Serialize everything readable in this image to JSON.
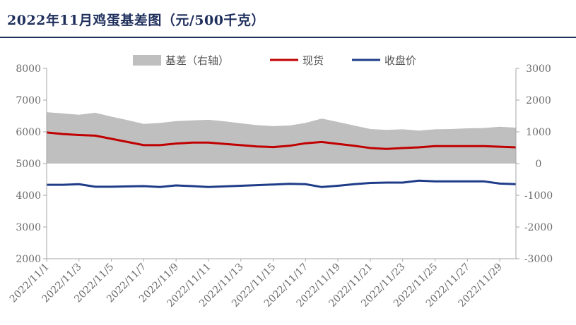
{
  "title": "2022年11月鸡蛋基差图（元/500千克）",
  "chart_data": {
    "type": "line",
    "x": [
      "2022/11/1",
      "2022/11/2",
      "2022/11/3",
      "2022/11/4",
      "2022/11/5",
      "2022/11/6",
      "2022/11/7",
      "2022/11/8",
      "2022/11/9",
      "2022/11/10",
      "2022/11/11",
      "2022/11/12",
      "2022/11/13",
      "2022/11/14",
      "2022/11/15",
      "2022/11/16",
      "2022/11/17",
      "2022/11/18",
      "2022/11/19",
      "2022/11/20",
      "2022/11/21",
      "2022/11/22",
      "2022/11/23",
      "2022/11/24",
      "2022/11/25",
      "2022/11/26",
      "2022/11/27",
      "2022/11/28",
      "2022/11/29",
      "2022/11/30"
    ],
    "x_tick_labels": [
      "2022/11/1",
      "2022/11/3",
      "2022/11/5",
      "2022/11/7",
      "2022/11/9",
      "2022/11/11",
      "2022/11/13",
      "2022/11/15",
      "2022/11/17",
      "2022/11/19",
      "2022/11/21",
      "2022/11/23",
      "2022/11/25",
      "2022/11/27",
      "2022/11/29"
    ],
    "y_left": {
      "ylim": [
        2000,
        8000
      ],
      "ticks": [
        2000,
        3000,
        4000,
        5000,
        6000,
        7000,
        8000
      ]
    },
    "y_right": {
      "ylim": [
        -3000,
        3000
      ],
      "ticks": [
        -3000,
        -2000,
        -1000,
        0,
        1000,
        2000,
        3000
      ]
    },
    "series": [
      {
        "name": "基差（右轴）",
        "type": "area",
        "axis": "right",
        "color": "#bfbfbf",
        "values": [
          1620,
          1580,
          1540,
          1600,
          1480,
          1370,
          1250,
          1280,
          1340,
          1360,
          1380,
          1330,
          1270,
          1210,
          1180,
          1200,
          1280,
          1420,
          1310,
          1200,
          1090,
          1060,
          1080,
          1040,
          1080,
          1090,
          1110,
          1120,
          1160,
          1130
        ]
      },
      {
        "name": "现货",
        "type": "line",
        "axis": "left",
        "color": "#c00000",
        "values": [
          5980,
          5930,
          5900,
          5880,
          5780,
          5680,
          5580,
          5580,
          5630,
          5660,
          5660,
          5620,
          5580,
          5540,
          5520,
          5560,
          5640,
          5680,
          5620,
          5560,
          5490,
          5460,
          5490,
          5510,
          5550,
          5550,
          5550,
          5550,
          5530,
          5510
        ]
      },
      {
        "name": "收盘价",
        "type": "line",
        "axis": "left",
        "color": "#1f3c88",
        "values": [
          4330,
          4330,
          4350,
          4270,
          4270,
          4280,
          4290,
          4260,
          4310,
          4290,
          4260,
          4280,
          4300,
          4320,
          4340,
          4360,
          4350,
          4260,
          4300,
          4350,
          4390,
          4400,
          4400,
          4460,
          4440,
          4440,
          4440,
          4440,
          4370,
          4350
        ]
      }
    ],
    "legend": {
      "placement": "top-center"
    },
    "grid": false
  }
}
